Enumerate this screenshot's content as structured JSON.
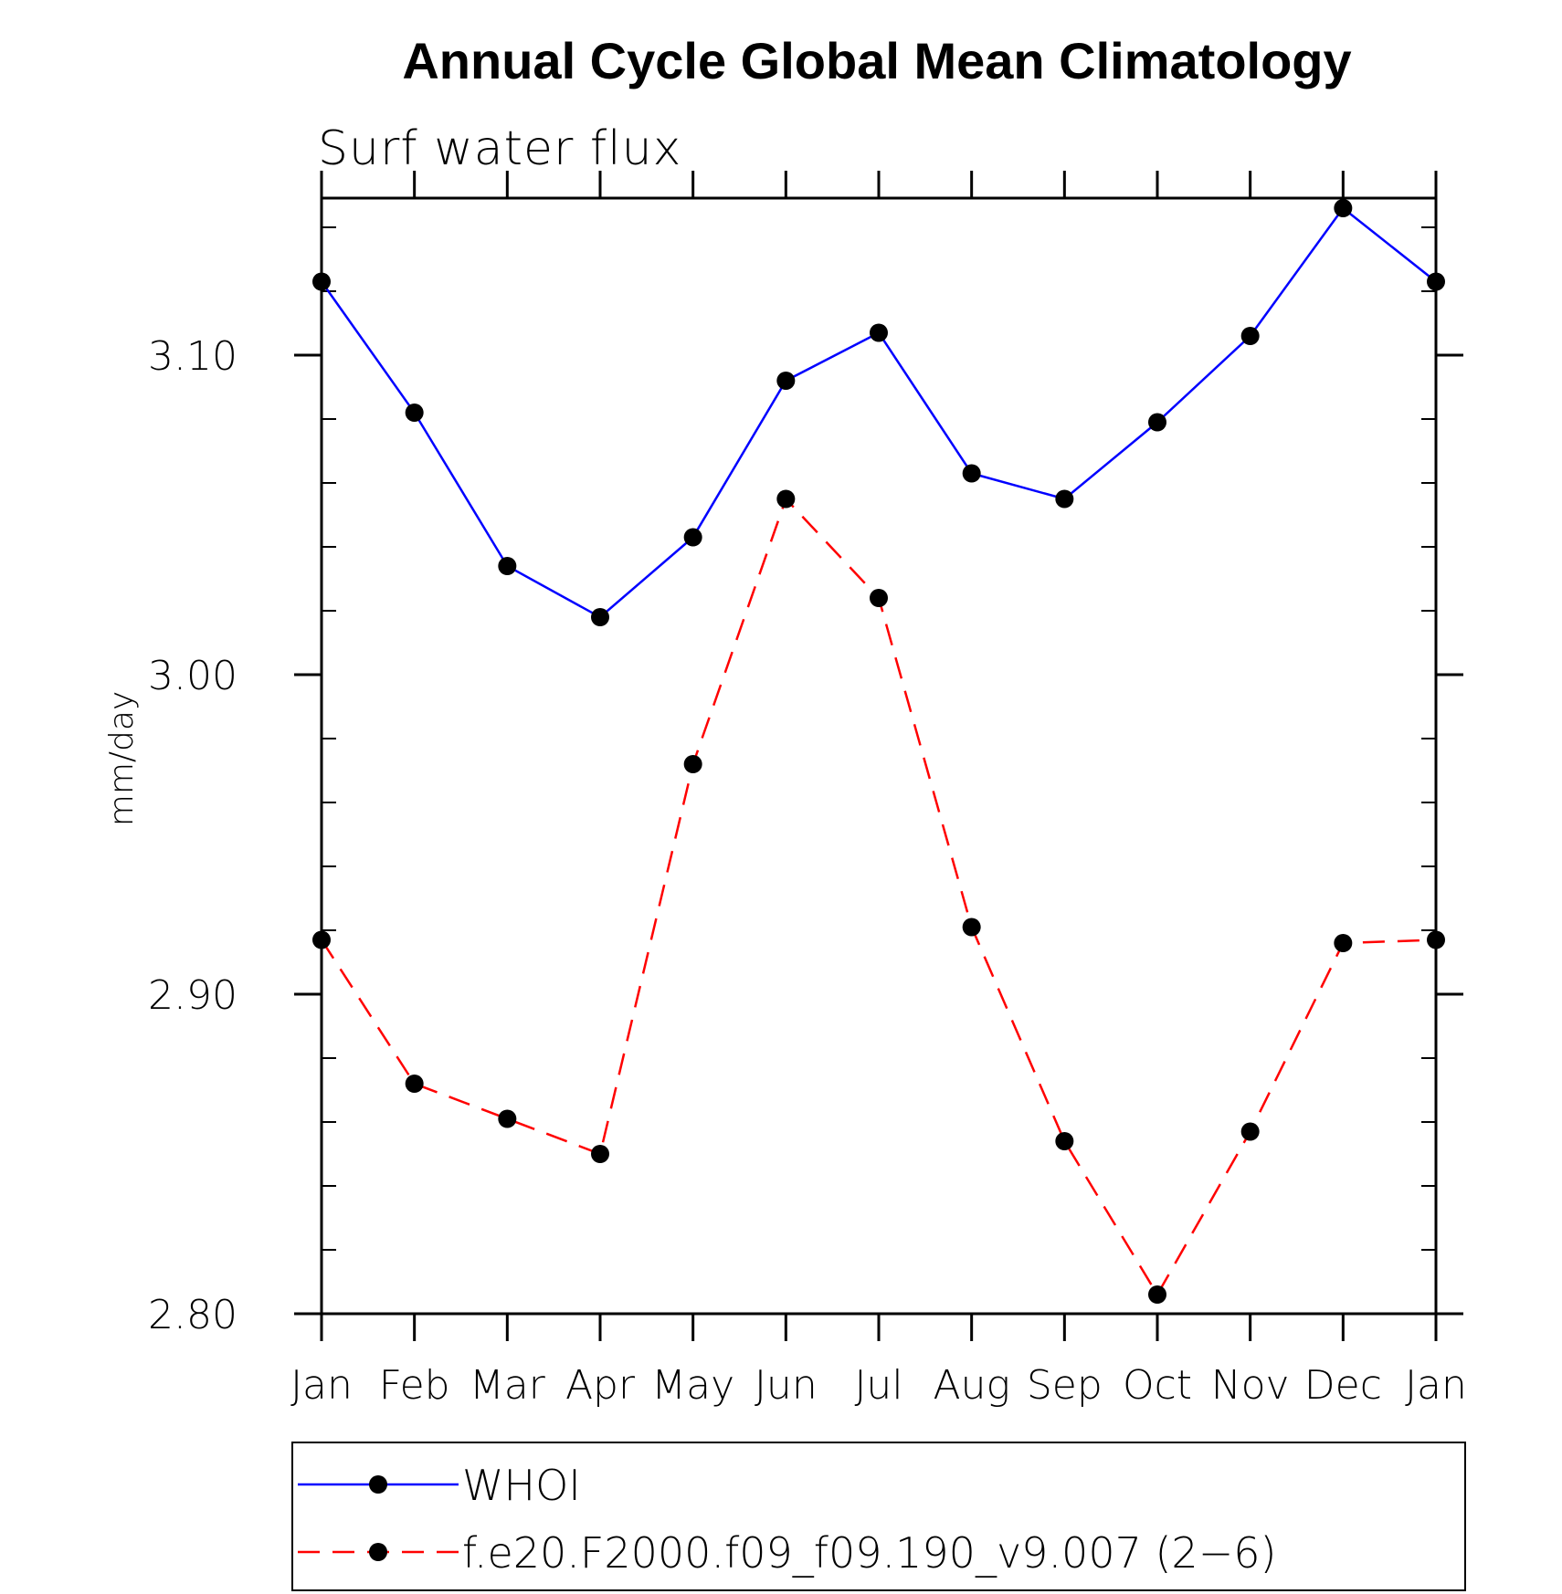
{
  "chart_data": {
    "type": "line",
    "title": "Annual Cycle Global Mean Climatology",
    "subtitle": "Surf  water  flux",
    "xlabel": "",
    "ylabel": "mm/day",
    "categories": [
      "Jan",
      "Feb",
      "Mar",
      "Apr",
      "May",
      "Jun",
      "Jul",
      "Aug",
      "Sep",
      "Oct",
      "Nov",
      "Dec",
      "Jan"
    ],
    "ylim": [
      2.8,
      3.15
    ],
    "yticks": [
      2.8,
      2.9,
      3.0,
      3.1
    ],
    "ytick_labels": [
      "2.80",
      "2.90",
      "3.00",
      "3.10"
    ],
    "y_minor_step": 0.02,
    "grid": false,
    "legend_position": "bottom",
    "series": [
      {
        "name": "WHOI",
        "color": "#0000ff",
        "line_style": "solid",
        "marker": "filled-circle",
        "values": [
          3.123,
          3.082,
          3.034,
          3.018,
          3.043,
          3.092,
          3.107,
          3.063,
          3.055,
          3.079,
          3.106,
          3.146,
          3.123
        ]
      },
      {
        "name": "f.e20.F2000.f09_f09.190_v9.007 (2−6)",
        "color": "#ff0000",
        "line_style": "dashed",
        "marker": "filled-circle",
        "values": [
          2.917,
          2.872,
          2.861,
          2.85,
          2.972,
          3.055,
          3.024,
          2.921,
          2.854,
          2.806,
          2.857,
          2.916,
          2.917
        ]
      }
    ]
  }
}
